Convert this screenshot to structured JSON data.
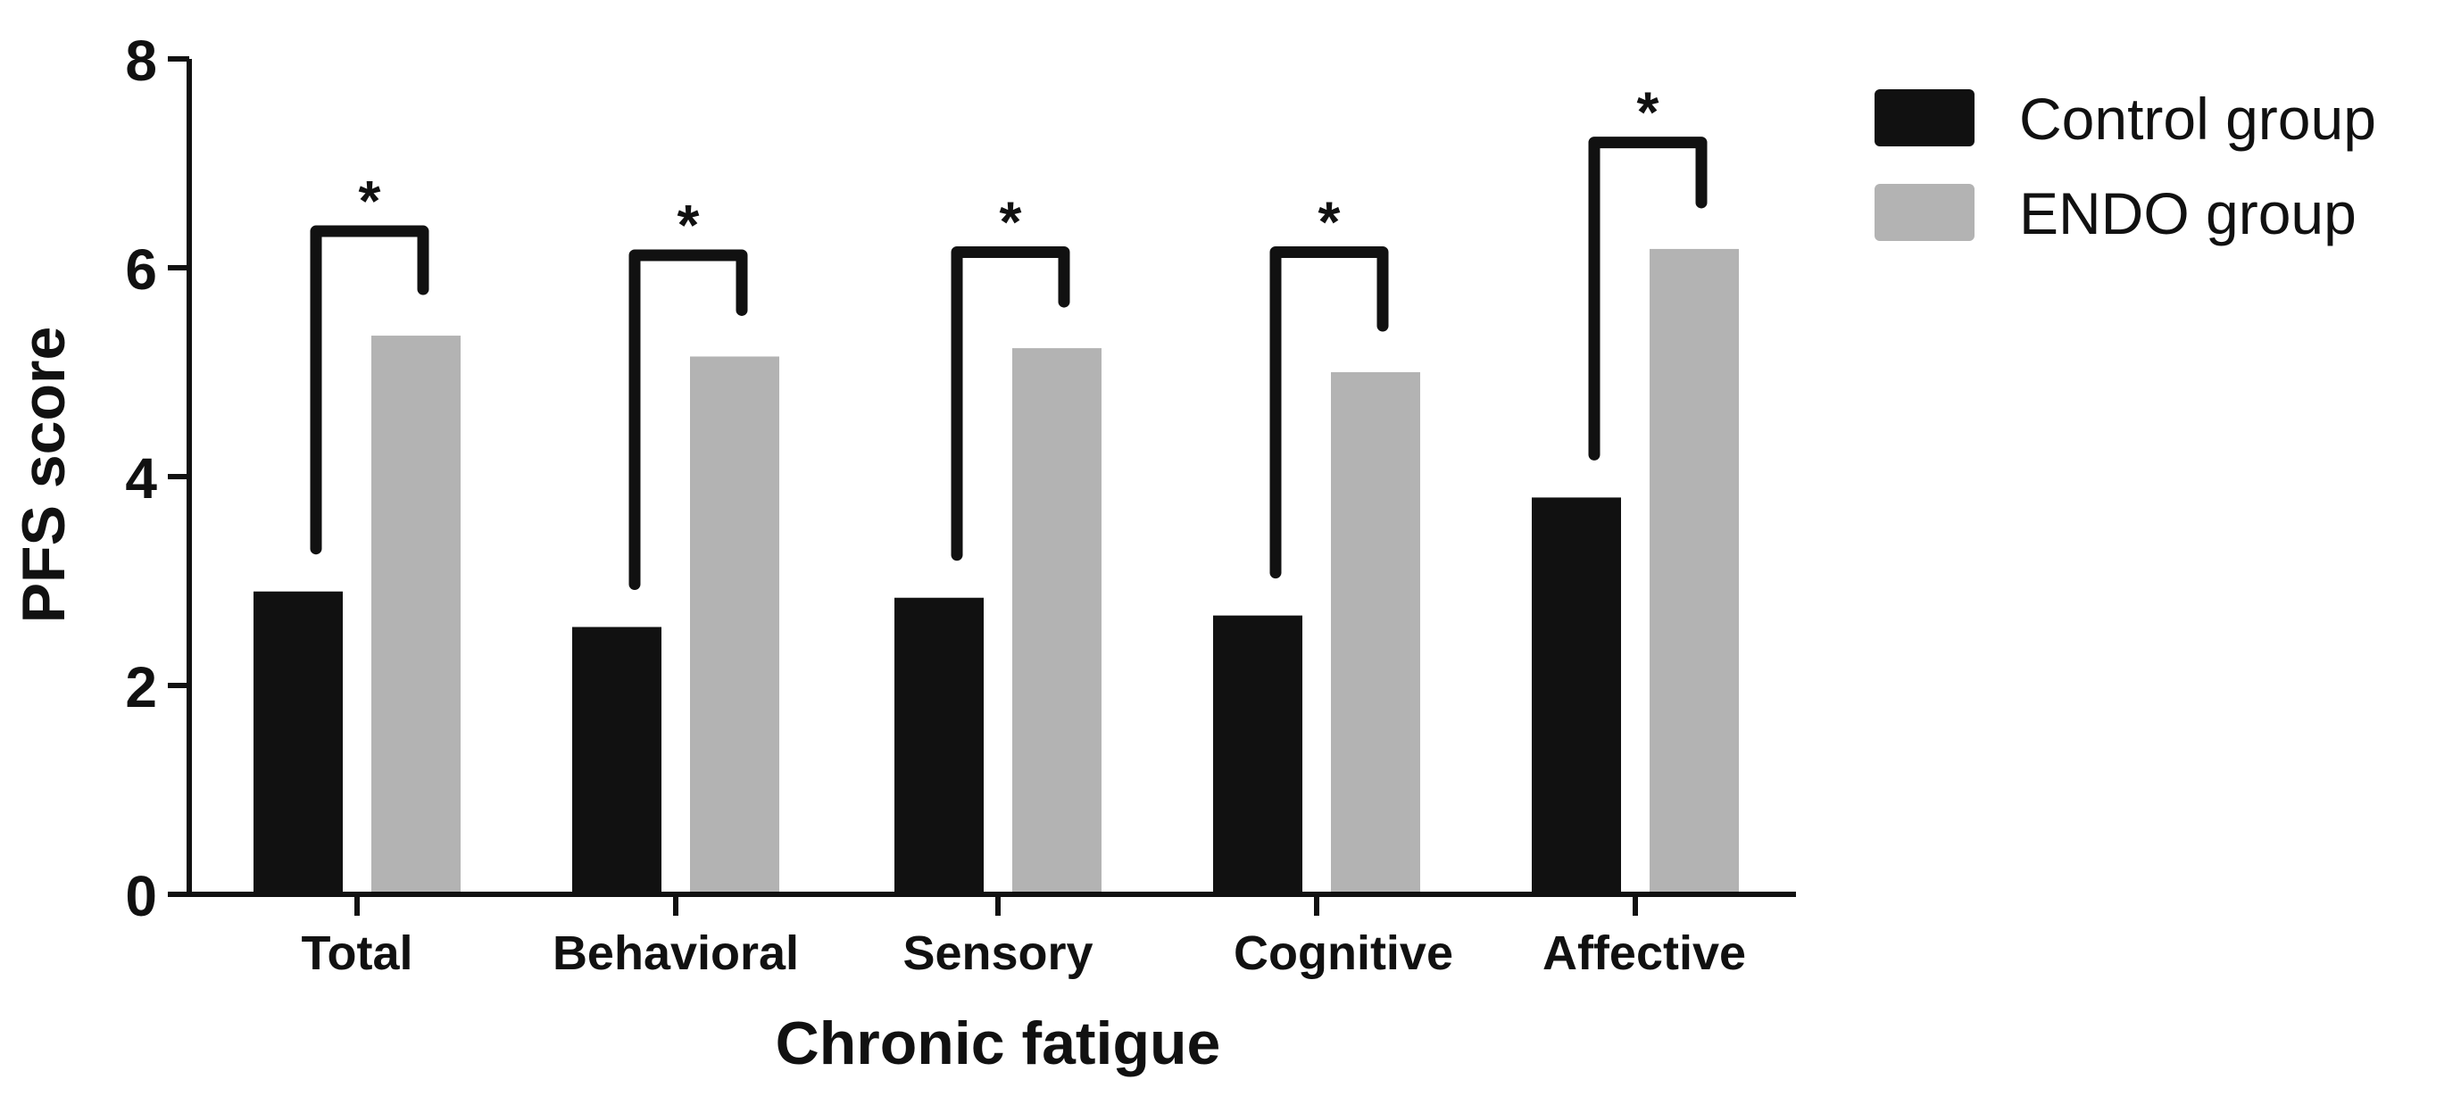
{
  "chart_data": {
    "type": "bar",
    "title": "",
    "xlabel": "Chronic fatigue",
    "ylabel": "PFS score",
    "ylim": [
      0,
      8
    ],
    "yticks": [
      0,
      2,
      4,
      6,
      8
    ],
    "grid": false,
    "legend_position": "top-right",
    "categories": [
      "Total",
      "Behavioral",
      "Sensory",
      "Cognitive",
      "Affective"
    ],
    "series": [
      {
        "name": "Control group",
        "color": "#111111",
        "values": [
          2.9,
          2.56,
          2.84,
          2.67,
          3.8
        ]
      },
      {
        "name": "ENDO group",
        "color": "#b3b3b3",
        "values": [
          5.35,
          5.15,
          5.23,
          5.0,
          6.18
        ]
      }
    ],
    "significance": [
      {
        "category": "Total",
        "label": "*",
        "bracket_level": 6.35
      },
      {
        "category": "Behavioral",
        "label": "*",
        "bracket_level": 6.12
      },
      {
        "category": "Sensory",
        "label": "*",
        "bracket_level": 6.15
      },
      {
        "category": "Cognitive",
        "label": "*",
        "bracket_level": 6.15
      },
      {
        "category": "Affective",
        "label": "*",
        "bracket_level": 7.2
      }
    ]
  }
}
